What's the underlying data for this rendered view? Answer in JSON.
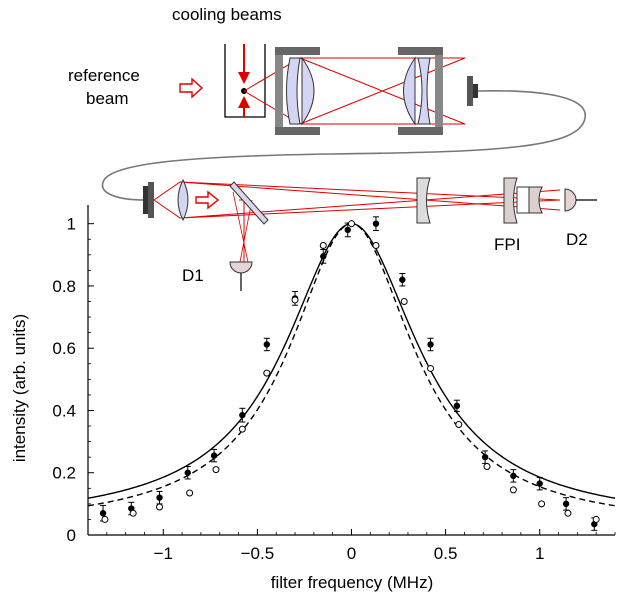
{
  "setup": {
    "cooling_beams_label": "cooling beams",
    "reference_beam_label_line1": "reference",
    "reference_beam_label_line2": "beam",
    "detector1_label": "D1",
    "detector2_label": "D2",
    "fpi_label": "FPI",
    "beam_color": "#e00000",
    "lens_fill": "#d4d4f4",
    "mount_color": "#666666",
    "fiber_color": "#777777"
  },
  "chart_data": {
    "type": "scatter",
    "xlabel": "filter frequency (MHz)",
    "ylabel": "intensity (arb. units)",
    "xlim": [
      -1.4,
      1.4
    ],
    "ylim": [
      0,
      1.06
    ],
    "x_ticks": [
      -1,
      -0.5,
      0,
      0.5,
      1
    ],
    "x_tick_labels": [
      "−1",
      "−0.5",
      "0",
      "0.5",
      "1"
    ],
    "y_ticks": [
      0,
      0.2,
      0.4,
      0.6,
      0.8,
      1
    ],
    "y_tick_labels": [
      "0",
      "0.2",
      "0.4",
      "0.6",
      "0.8",
      "1"
    ],
    "grid": false,
    "series": [
      {
        "marker": "filled-circle-with-errorbars",
        "line": "solid fit",
        "x": [
          -1.32,
          -1.17,
          -1.02,
          -0.87,
          -0.73,
          -0.58,
          -0.45,
          -0.3,
          -0.15,
          -0.02,
          0.13,
          0.27,
          0.42,
          0.56,
          0.71,
          0.86,
          1.0,
          1.14,
          1.29
        ],
        "y": [
          0.07,
          0.085,
          0.12,
          0.2,
          0.255,
          0.385,
          0.612,
          0.76,
          0.895,
          0.98,
          1.0,
          0.82,
          0.612,
          0.415,
          0.25,
          0.19,
          0.165,
          0.1,
          0.035
        ],
        "err": [
          0.025,
          0.02,
          0.02,
          0.02,
          0.02,
          0.022,
          0.02,
          0.022,
          0.022,
          0.022,
          0.022,
          0.02,
          0.02,
          0.018,
          0.02,
          0.02,
          0.02,
          0.02,
          0.02
        ],
        "fit_hwhm": 0.43,
        "fit_offset": 0.035
      },
      {
        "marker": "open-circle",
        "line": "dashed fit",
        "x": [
          -1.31,
          -1.16,
          -1.02,
          -0.86,
          -0.72,
          -0.58,
          -0.45,
          -0.3,
          -0.15,
          0.0,
          0.13,
          0.28,
          0.42,
          0.57,
          0.72,
          0.86,
          1.01,
          1.15,
          1.3
        ],
        "y": [
          0.05,
          0.07,
          0.09,
          0.135,
          0.21,
          0.34,
          0.52,
          0.755,
          0.93,
          1.0,
          0.93,
          0.75,
          0.535,
          0.355,
          0.22,
          0.145,
          0.1,
          0.07,
          0.05
        ],
        "fit_hwhm": 0.4,
        "fit_offset": 0.02
      }
    ]
  }
}
